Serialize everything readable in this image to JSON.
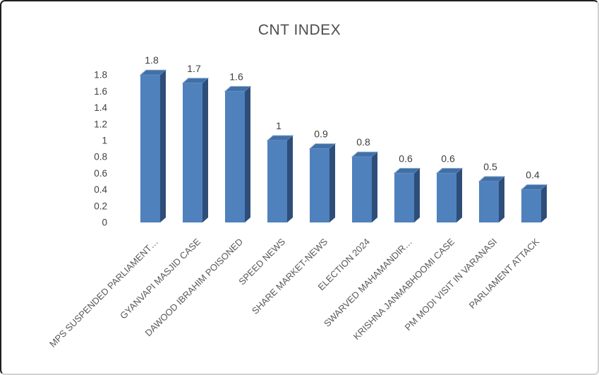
{
  "chart_data": {
    "type": "bar",
    "title": "CNT INDEX",
    "categories": [
      "MPS SUSPENDED PARLIAMENT…",
      "GYANVAPI MASJID CASE",
      "DAWOOD IBRAHIM POISONED",
      "SPEED NEWS",
      "SHARE MARKET-NEWS",
      "ELECTION 2024",
      "SWARVED MAHAMANDIR…",
      "KRISHNA JANMABHOOMI CASE",
      "PM MODI VISIT IN VARANASI",
      "PARLIAMENT ATTACK"
    ],
    "values": [
      1.8,
      1.7,
      1.6,
      1,
      0.9,
      0.8,
      0.6,
      0.6,
      0.5,
      0.4
    ],
    "data_labels": [
      "1.8",
      "1.7",
      "1.6",
      "1",
      "0.9",
      "0.8",
      "0.6",
      "0.6",
      "0.5",
      "0.4"
    ],
    "ytick_labels": [
      "0",
      "0.2",
      "0.4",
      "0.6",
      "0.8",
      "1",
      "1.2",
      "1.4",
      "1.6",
      "1.8"
    ],
    "ylim": [
      0,
      1.8
    ],
    "ytick_step": 0.2,
    "xlabel": "",
    "ylabel": "",
    "grid": false,
    "legend": false,
    "style_3d": true,
    "colors": {
      "bar_front": "#4f81bd",
      "bar_side": "#2e4e79",
      "bar_top": "#416fa6",
      "bar_top_edge": "#7da1cc",
      "data_label": "#3d3d3d",
      "ytick_label": "#404040",
      "category_label": "#595959",
      "title": "#4c4c4c",
      "background": "#ffffff"
    }
  }
}
